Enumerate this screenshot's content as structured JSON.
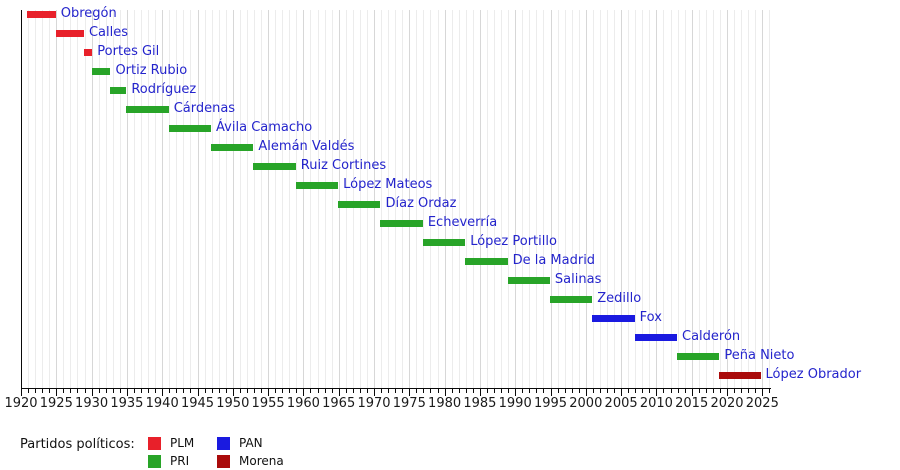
{
  "chart_data": {
    "type": "bar",
    "variant": "horizontal-gantt-timeline",
    "title": "",
    "x_axis": {
      "min": 1920,
      "max": 2026,
      "major_tick_interval": 5,
      "minor_tick_interval": 1,
      "tick_labels": [
        "1920",
        "1925",
        "1930",
        "1935",
        "1940",
        "1945",
        "1950",
        "1955",
        "1960",
        "1965",
        "1970",
        "1975",
        "1980",
        "1985",
        "1990",
        "1995",
        "2000",
        "2005",
        "2010",
        "2015",
        "2020",
        "2025"
      ],
      "gridlines": true
    },
    "rows": [
      {
        "label": "Obregón",
        "party": "PLM",
        "start": 1920.92,
        "end": 1924.92
      },
      {
        "label": "Calles",
        "party": "PLM",
        "start": 1924.92,
        "end": 1928.92
      },
      {
        "label": "Portes Gil",
        "party": "PLM",
        "start": 1928.92,
        "end": 1930.1
      },
      {
        "label": "Ortiz Rubio",
        "party": "PRI",
        "start": 1930.1,
        "end": 1932.67
      },
      {
        "label": "Rodríguez",
        "party": "PRI",
        "start": 1932.67,
        "end": 1934.92
      },
      {
        "label": "Cárdenas",
        "party": "PRI",
        "start": 1934.92,
        "end": 1940.92
      },
      {
        "label": "Ávila Camacho",
        "party": "PRI",
        "start": 1940.92,
        "end": 1946.92
      },
      {
        "label": "Alemán Valdés",
        "party": "PRI",
        "start": 1946.92,
        "end": 1952.92
      },
      {
        "label": "Ruiz Cortines",
        "party": "PRI",
        "start": 1952.92,
        "end": 1958.92
      },
      {
        "label": "López Mateos",
        "party": "PRI",
        "start": 1958.92,
        "end": 1964.92
      },
      {
        "label": "Díaz Ordaz",
        "party": "PRI",
        "start": 1964.92,
        "end": 1970.92
      },
      {
        "label": "Echeverría",
        "party": "PRI",
        "start": 1970.92,
        "end": 1976.92
      },
      {
        "label": "López Portillo",
        "party": "PRI",
        "start": 1976.92,
        "end": 1982.92
      },
      {
        "label": "De la Madrid",
        "party": "PRI",
        "start": 1982.92,
        "end": 1988.92
      },
      {
        "label": "Salinas",
        "party": "PRI",
        "start": 1988.92,
        "end": 1994.92
      },
      {
        "label": "Zedillo",
        "party": "PRI",
        "start": 1994.92,
        "end": 2000.92
      },
      {
        "label": "Fox",
        "party": "PAN",
        "start": 2000.92,
        "end": 2006.92
      },
      {
        "label": "Calderón",
        "party": "PAN",
        "start": 2006.92,
        "end": 2012.92
      },
      {
        "label": "Peña Nieto",
        "party": "PRI",
        "start": 2012.92,
        "end": 2018.92
      },
      {
        "label": "López Obrador",
        "party": "Morena",
        "start": 2018.92,
        "end": 2024.75
      }
    ],
    "party_colors": {
      "PLM": "#e8202a",
      "PRI": "#28a428",
      "PAN": "#1a1ae0",
      "Morena": "#aa0b0b"
    },
    "bar_label_color": "#2424cc",
    "legend_position": "bottom"
  },
  "legend": {
    "title": "Partidos políticos:",
    "items": [
      {
        "label": "PLM",
        "color": "#e8202a"
      },
      {
        "label": "PRI",
        "color": "#28a428"
      },
      {
        "label": "PAN",
        "color": "#1a1ae0"
      },
      {
        "label": "Morena",
        "color": "#aa0b0b"
      }
    ]
  }
}
